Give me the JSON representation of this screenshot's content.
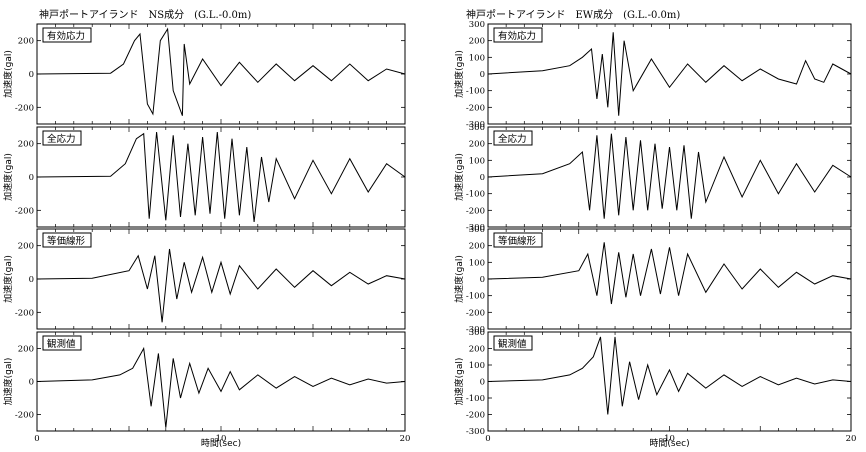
{
  "titles": {
    "left": "神戸ポートアイランド　NS成分　(G.L.-0.0m)",
    "right": "神戸ポートアイランド　EW成分　(G.L.-0.0m)"
  },
  "chart_data": [
    {
      "type": "line",
      "column": "NS",
      "panels": [
        {
          "label": "有効応力",
          "ylabel": "加速度(gal)",
          "yticks": [
            -200,
            0,
            200
          ],
          "ylim": [
            -300,
            300
          ],
          "xlim": [
            0,
            20
          ],
          "xticks": [
            0,
            10,
            20
          ],
          "x": [
            0,
            4,
            4.7,
            5.3,
            5.6,
            6.0,
            6.3,
            6.7,
            7.1,
            7.4,
            7.9,
            8.0,
            8.3,
            9,
            10,
            11,
            12,
            13,
            14,
            15,
            16,
            17,
            18,
            19,
            20
          ],
          "y": [
            0,
            5,
            60,
            200,
            240,
            -180,
            -240,
            200,
            270,
            -100,
            -250,
            180,
            -60,
            90,
            -70,
            70,
            -50,
            60,
            -40,
            50,
            -40,
            60,
            -40,
            30,
            0
          ]
        },
        {
          "label": "全応力",
          "ylabel": "加速度(gal)",
          "yticks": [
            -200,
            0,
            200
          ],
          "ylim": [
            -300,
            300
          ],
          "xlim": [
            0,
            20
          ],
          "xticks": [
            0,
            10,
            20
          ],
          "x": [
            0,
            4,
            4.8,
            5.4,
            5.8,
            6.1,
            6.5,
            7.0,
            7.4,
            7.8,
            8.2,
            8.6,
            9.0,
            9.4,
            9.8,
            10.2,
            10.6,
            11.0,
            11.4,
            11.8,
            12.2,
            12.6,
            13,
            14,
            15,
            16,
            17,
            18,
            19,
            20
          ],
          "y": [
            0,
            5,
            80,
            230,
            260,
            -250,
            270,
            -260,
            250,
            -240,
            200,
            -230,
            240,
            -220,
            270,
            -250,
            230,
            -230,
            180,
            -270,
            120,
            -150,
            110,
            -130,
            100,
            -100,
            110,
            -90,
            80,
            0
          ]
        },
        {
          "label": "等価線形",
          "ylabel": "加速度(gal)",
          "yticks": [
            -200,
            0,
            200
          ],
          "ylim": [
            -300,
            300
          ],
          "xlim": [
            0,
            20
          ],
          "xticks": [
            0,
            10,
            20
          ],
          "x": [
            0,
            3,
            5.0,
            5.5,
            6.0,
            6.4,
            6.8,
            7.2,
            7.6,
            8.0,
            8.4,
            9.0,
            9.5,
            10,
            10.5,
            11,
            12,
            13,
            14,
            15,
            16,
            17,
            18,
            19,
            20
          ],
          "y": [
            0,
            5,
            50,
            140,
            -60,
            140,
            -260,
            180,
            -120,
            100,
            -80,
            130,
            -80,
            100,
            -90,
            80,
            -60,
            60,
            -50,
            50,
            -40,
            40,
            -30,
            20,
            0
          ]
        },
        {
          "label": "観測値",
          "ylabel": "加速度(gal)",
          "yticks": [
            -200,
            0,
            200
          ],
          "ylim": [
            -300,
            300
          ],
          "xlim": [
            0,
            20
          ],
          "xticks": [
            0,
            10,
            20
          ],
          "x": [
            0,
            3,
            4.5,
            5.2,
            5.8,
            6.2,
            6.6,
            7.0,
            7.4,
            7.8,
            8.3,
            8.8,
            9.3,
            10,
            10.5,
            11,
            12,
            13,
            14,
            15,
            16,
            17,
            18,
            19,
            20
          ],
          "y": [
            0,
            10,
            40,
            80,
            200,
            -150,
            170,
            -280,
            140,
            -100,
            110,
            -70,
            80,
            -60,
            60,
            -50,
            40,
            -40,
            30,
            -30,
            20,
            -20,
            15,
            -10,
            0
          ]
        }
      ],
      "xlabel": "時間(sec)"
    },
    {
      "type": "line",
      "column": "EW",
      "panels": [
        {
          "label": "有効応力",
          "ylabel": "加速度(gal)",
          "yticks": [
            -300,
            -200,
            -100,
            0,
            100,
            200,
            300
          ],
          "ylim": [
            -300,
            300
          ],
          "xlim": [
            0,
            20
          ],
          "xticks": [
            0,
            10,
            20
          ],
          "x": [
            0,
            3,
            4.5,
            5.2,
            5.7,
            6.0,
            6.3,
            6.6,
            6.9,
            7.2,
            7.5,
            8,
            9,
            10,
            11,
            12,
            13,
            14,
            15,
            16,
            17,
            17.5,
            18,
            18.5,
            19,
            20
          ],
          "y": [
            0,
            20,
            50,
            100,
            150,
            -150,
            120,
            -200,
            250,
            -250,
            200,
            -100,
            90,
            -80,
            60,
            -50,
            50,
            -40,
            30,
            -30,
            -60,
            80,
            -30,
            -50,
            60,
            0
          ]
        },
        {
          "label": "全応力",
          "ylabel": "加速度(gal)",
          "yticks": [
            -300,
            -200,
            -100,
            0,
            100,
            200,
            300
          ],
          "ylim": [
            -300,
            300
          ],
          "xlim": [
            0,
            20
          ],
          "xticks": [
            0,
            10,
            20
          ],
          "x": [
            0,
            3,
            4.5,
            5.2,
            5.6,
            6.0,
            6.4,
            6.8,
            7.2,
            7.6,
            8.0,
            8.4,
            8.8,
            9.2,
            9.6,
            10.0,
            10.4,
            10.8,
            11.2,
            11.6,
            12,
            13,
            14,
            15,
            16,
            17,
            18,
            19,
            20
          ],
          "y": [
            0,
            20,
            80,
            150,
            -200,
            250,
            -250,
            260,
            -230,
            240,
            -200,
            220,
            -200,
            200,
            -190,
            180,
            -200,
            190,
            -250,
            150,
            -150,
            120,
            -120,
            100,
            -100,
            80,
            -90,
            70,
            0
          ]
        },
        {
          "label": "等価線形",
          "ylabel": "加速度(gal)",
          "yticks": [
            -300,
            -200,
            -100,
            0,
            100,
            200,
            300
          ],
          "ylim": [
            -300,
            300
          ],
          "xlim": [
            0,
            20
          ],
          "xticks": [
            0,
            10,
            20
          ],
          "x": [
            0,
            3,
            5.0,
            5.5,
            6.0,
            6.4,
            6.8,
            7.2,
            7.6,
            8.0,
            8.4,
            9.0,
            9.5,
            10,
            10.5,
            11,
            12,
            13,
            14,
            15,
            16,
            17,
            18,
            19,
            20
          ],
          "y": [
            0,
            10,
            50,
            150,
            -100,
            220,
            -150,
            160,
            -110,
            150,
            -100,
            180,
            -90,
            190,
            -100,
            150,
            -80,
            90,
            -60,
            60,
            -50,
            40,
            -30,
            20,
            0
          ]
        },
        {
          "label": "観測値",
          "ylabel": "加速度(gal)",
          "yticks": [
            -300,
            -200,
            -100,
            0,
            100,
            200,
            300
          ],
          "ylim": [
            -300,
            300
          ],
          "xlim": [
            0,
            20
          ],
          "xticks": [
            0,
            10,
            20
          ],
          "x": [
            0,
            3,
            4.5,
            5.2,
            5.8,
            6.2,
            6.6,
            7.0,
            7.4,
            7.8,
            8.3,
            8.8,
            9.3,
            10,
            10.5,
            11,
            12,
            13,
            14,
            15,
            16,
            17,
            18,
            19,
            20
          ],
          "y": [
            0,
            10,
            40,
            80,
            150,
            270,
            -200,
            270,
            -150,
            120,
            -110,
            100,
            -80,
            70,
            -60,
            50,
            -40,
            40,
            -30,
            30,
            -20,
            20,
            -15,
            10,
            0
          ]
        }
      ],
      "xlabel": "時間(sec)"
    }
  ]
}
